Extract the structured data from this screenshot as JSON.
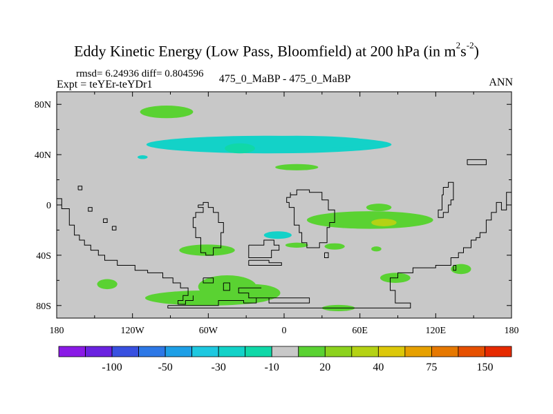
{
  "chart_data": {
    "type": "heatmap",
    "title": {
      "main": "Eddy Kinetic Energy (Low Pass, Bloomfield) at 200 hPa (in m",
      "exp1": "2",
      "mid": "s",
      "exp2": "-2",
      "close": ")"
    },
    "stats_line": "rmsd= 6.24936  diff= 0.804596",
    "expt_line": "Expt = teYEr-teYDr1",
    "center_label": "475_0_MaBP - 475_0_MaBP",
    "right_label": "ANN",
    "xlim": [
      -180,
      180
    ],
    "ylim": [
      -90,
      90
    ],
    "x_ticks": [
      {
        "value": -180,
        "label": "180"
      },
      {
        "value": -120,
        "label": "120W"
      },
      {
        "value": -60,
        "label": "60W"
      },
      {
        "value": 0,
        "label": "0"
      },
      {
        "value": 60,
        "label": "60E"
      },
      {
        "value": 120,
        "label": "120E"
      },
      {
        "value": 180,
        "label": "180"
      }
    ],
    "y_ticks": [
      {
        "value": 80,
        "label": "80N"
      },
      {
        "value": 40,
        "label": "40N"
      },
      {
        "value": 0,
        "label": "0"
      },
      {
        "value": -40,
        "label": "40S"
      },
      {
        "value": -80,
        "label": "80S"
      }
    ],
    "colorbar": {
      "colors": [
        "#8a1ae6",
        "#6a22e0",
        "#3850e0",
        "#2d78e6",
        "#1e9fe6",
        "#1ec8e0",
        "#13d2c8",
        "#10d8a8",
        "#c8c8c8",
        "#5ad232",
        "#8cd21e",
        "#b4d214",
        "#dcc80a",
        "#e6a000",
        "#e67800",
        "#e65000",
        "#e62a00"
      ],
      "labels": [
        {
          "after_box": 1,
          "text": "-100"
        },
        {
          "after_box": 3,
          "text": "-50"
        },
        {
          "after_box": 5,
          "text": "-30"
        },
        {
          "after_box": 7,
          "text": "-10"
        },
        {
          "after_box": 9,
          "text": "20"
        },
        {
          "after_box": 11,
          "text": "40"
        },
        {
          "after_box": 13,
          "text": "75"
        },
        {
          "after_box": 15,
          "text": "150"
        }
      ]
    },
    "field_regions": [
      {
        "color": "#5ad232",
        "lon": -93,
        "lat": 74,
        "rlon": 21,
        "rlat": 5
      },
      {
        "color": "#13d2c8",
        "lon": -12,
        "lat": 48,
        "rlon": 97,
        "rlat": 7
      },
      {
        "color": "#13d2c8",
        "lon": 10,
        "lat": 50,
        "rlon": 60,
        "rlat": 5
      },
      {
        "color": "#10d8a8",
        "lon": -35,
        "lat": 45,
        "rlon": 12,
        "rlat": 4
      },
      {
        "color": "#13d2c8",
        "lon": -112,
        "lat": 38,
        "rlon": 4,
        "rlat": 1.5
      },
      {
        "color": "#5ad232",
        "lon": 10,
        "lat": 30,
        "rlon": 17,
        "rlat": 2.5
      },
      {
        "color": "#5ad232",
        "lon": 68,
        "lat": -12,
        "rlon": 50,
        "rlat": 7
      },
      {
        "color": "#5ad232",
        "lon": 75,
        "lat": -2,
        "rlon": 10,
        "rlat": 3
      },
      {
        "color": "#b4d214",
        "lon": 79,
        "lat": -14,
        "rlon": 10,
        "rlat": 3
      },
      {
        "color": "#13d2c8",
        "lon": -5,
        "lat": -24,
        "rlon": 11,
        "rlat": 3
      },
      {
        "color": "#5ad232",
        "lon": 10,
        "lat": -32,
        "rlon": 9,
        "rlat": 2
      },
      {
        "color": "#5ad232",
        "lon": 40,
        "lat": -33,
        "rlon": 8,
        "rlat": 2.5
      },
      {
        "color": "#5ad232",
        "lon": 73,
        "lat": -35,
        "rlon": 4,
        "rlat": 2
      },
      {
        "color": "#5ad232",
        "lon": -61,
        "lat": -36,
        "rlon": 22,
        "rlat": 4.5
      },
      {
        "color": "#5ad232",
        "lon": 88,
        "lat": -58,
        "rlon": 12,
        "rlat": 4
      },
      {
        "color": "#5ad232",
        "lon": 140,
        "lat": -51,
        "rlon": 8,
        "rlat": 4
      },
      {
        "color": "#5ad232",
        "lon": -140,
        "lat": -63,
        "rlon": 8,
        "rlat": 4
      },
      {
        "color": "#5ad232",
        "lon": -45,
        "lat": -65,
        "rlon": 23,
        "rlat": 9
      },
      {
        "color": "#5ad232",
        "lon": -60,
        "lat": -74,
        "rlon": 50,
        "rlat": 6
      },
      {
        "color": "#5ad232",
        "lon": -25,
        "lat": -70,
        "rlon": 22,
        "rlat": 7
      },
      {
        "color": "#5ad232",
        "lon": 43,
        "lat": -82,
        "rlon": 13,
        "rlat": 2.5
      }
    ],
    "coastlines": [
      [
        [
          -180,
          5
        ],
        [
          -176,
          5
        ],
        [
          -176,
          -3
        ],
        [
          -170,
          -3
        ],
        [
          -170,
          -16
        ],
        [
          -166,
          -16
        ],
        [
          -166,
          -24
        ],
        [
          -162,
          -24
        ],
        [
          -162,
          -28
        ],
        [
          -158,
          -28
        ],
        [
          -158,
          -32
        ],
        [
          -153,
          -32
        ],
        [
          -153,
          -36
        ],
        [
          -147,
          -36
        ],
        [
          -147,
          -40
        ],
        [
          -142,
          -40
        ],
        [
          -142,
          -44
        ],
        [
          -132,
          -44
        ],
        [
          -132,
          -48
        ],
        [
          -118,
          -48
        ],
        [
          -118,
          -52
        ],
        [
          -108,
          -52
        ],
        [
          -108,
          -54
        ],
        [
          -96,
          -54
        ],
        [
          -96,
          -58
        ],
        [
          -88,
          -58
        ],
        [
          -88,
          -62
        ],
        [
          -82,
          -62
        ],
        [
          -82,
          -66
        ],
        [
          -76,
          -66
        ],
        [
          -76,
          -72
        ],
        [
          -80,
          -72
        ],
        [
          -80,
          -76
        ],
        [
          -84,
          -76
        ],
        [
          -84,
          -79
        ],
        [
          -78,
          -79
        ],
        [
          -78,
          -76
        ],
        [
          -72,
          -76
        ],
        [
          -72,
          -72
        ]
      ],
      [
        [
          -92,
          -80
        ],
        [
          -52,
          -80
        ],
        [
          -52,
          -76
        ],
        [
          -32,
          -76
        ],
        [
          -32,
          -78
        ],
        [
          -22,
          -78
        ],
        [
          -22,
          -74
        ],
        [
          -12,
          -74
        ],
        [
          -12,
          -78
        ],
        [
          20,
          -78
        ],
        [
          20,
          -74
        ],
        [
          -28,
          -74
        ],
        [
          -28,
          -70
        ],
        [
          -36,
          -70
        ],
        [
          -36,
          -66
        ],
        [
          -18,
          -66
        ]
      ],
      [
        [
          -92,
          -80
        ],
        [
          -92,
          -82
        ],
        [
          100,
          -82
        ],
        [
          100,
          -78
        ],
        [
          88,
          -78
        ],
        [
          88,
          -68
        ],
        [
          84,
          -68
        ],
        [
          84,
          -58
        ],
        [
          90,
          -58
        ],
        [
          90,
          -54
        ],
        [
          102,
          -54
        ],
        [
          102,
          -50
        ],
        [
          120,
          -50
        ],
        [
          120,
          -48
        ],
        [
          132,
          -48
        ],
        [
          132,
          -42
        ],
        [
          138,
          -42
        ],
        [
          138,
          -38
        ],
        [
          142,
          -38
        ],
        [
          142,
          -34
        ],
        [
          148,
          -34
        ],
        [
          148,
          -28
        ],
        [
          152,
          -28
        ],
        [
          152,
          -26
        ],
        [
          155,
          -26
        ],
        [
          155,
          -22
        ],
        [
          160,
          -22
        ],
        [
          160,
          -12
        ],
        [
          164,
          -12
        ],
        [
          164,
          -6
        ],
        [
          168,
          -6
        ],
        [
          168,
          2
        ],
        [
          172,
          2
        ],
        [
          172,
          -4
        ],
        [
          176,
          -4
        ],
        [
          176,
          10
        ],
        [
          180,
          10
        ]
      ],
      [
        [
          -68,
          0
        ],
        [
          -68,
          -2
        ],
        [
          -64,
          -2
        ],
        [
          -64,
          -6
        ],
        [
          -70,
          -6
        ],
        [
          -70,
          -10
        ],
        [
          -72,
          -10
        ],
        [
          -72,
          -18
        ],
        [
          -70,
          -18
        ],
        [
          -70,
          -26
        ],
        [
          -66,
          -26
        ],
        [
          -66,
          -38
        ],
        [
          -62,
          -38
        ],
        [
          -62,
          -40
        ],
        [
          -56,
          -40
        ],
        [
          -56,
          -34
        ],
        [
          -50,
          -34
        ],
        [
          -50,
          -22
        ],
        [
          -48,
          -22
        ],
        [
          -48,
          -14
        ],
        [
          -52,
          -14
        ],
        [
          -52,
          -6
        ],
        [
          -56,
          -6
        ],
        [
          -56,
          -2
        ],
        [
          -60,
          -2
        ],
        [
          -60,
          2
        ],
        [
          -64,
          2
        ],
        [
          -64,
          0
        ],
        [
          -68,
          0
        ]
      ],
      [
        [
          5,
          10
        ],
        [
          5,
          8
        ],
        [
          10,
          8
        ],
        [
          10,
          12
        ],
        [
          20,
          12
        ],
        [
          20,
          10
        ],
        [
          30,
          10
        ],
        [
          30,
          4
        ],
        [
          35,
          4
        ],
        [
          35,
          -4
        ],
        [
          40,
          -4
        ],
        [
          40,
          -14
        ],
        [
          36,
          -14
        ],
        [
          36,
          -18
        ],
        [
          34,
          -18
        ],
        [
          34,
          -30
        ],
        [
          28,
          -30
        ],
        [
          28,
          -34
        ],
        [
          18,
          -34
        ],
        [
          18,
          -30
        ],
        [
          14,
          -30
        ],
        [
          14,
          -22
        ],
        [
          12,
          -22
        ],
        [
          12,
          -16
        ],
        [
          8,
          -16
        ],
        [
          8,
          -2
        ],
        [
          4,
          -2
        ],
        [
          4,
          2
        ],
        [
          2,
          2
        ],
        [
          2,
          6
        ],
        [
          5,
          6
        ],
        [
          5,
          10
        ]
      ],
      [
        [
          -28,
          -32
        ],
        [
          -28,
          -42
        ],
        [
          -10,
          -42
        ],
        [
          -10,
          -36
        ],
        [
          -4,
          -36
        ],
        [
          -4,
          -32
        ],
        [
          -8,
          -32
        ],
        [
          -8,
          -28
        ],
        [
          -16,
          -28
        ],
        [
          -16,
          -32
        ],
        [
          -28,
          -32
        ]
      ],
      [
        [
          -28,
          -44
        ],
        [
          -28,
          -48
        ],
        [
          -2,
          -48
        ],
        [
          -2,
          -46
        ],
        [
          -12,
          -46
        ],
        [
          -12,
          -44
        ],
        [
          -28,
          -44
        ]
      ],
      [
        [
          145,
          32
        ],
        [
          145,
          36
        ],
        [
          160,
          36
        ],
        [
          160,
          32
        ],
        [
          145,
          32
        ]
      ],
      [
        [
          125,
          8
        ],
        [
          125,
          -4
        ],
        [
          122,
          -4
        ],
        [
          122,
          -10
        ],
        [
          126,
          -10
        ],
        [
          126,
          -6
        ],
        [
          130,
          -6
        ],
        [
          130,
          0
        ],
        [
          132,
          0
        ],
        [
          132,
          4
        ],
        [
          134,
          4
        ],
        [
          134,
          18
        ],
        [
          130,
          18
        ],
        [
          130,
          14
        ],
        [
          126,
          14
        ],
        [
          126,
          8
        ],
        [
          125,
          8
        ]
      ],
      [
        [
          -163,
          12
        ],
        [
          -163,
          15
        ],
        [
          -160,
          15
        ],
        [
          -160,
          12
        ],
        [
          -163,
          12
        ]
      ],
      [
        [
          -155,
          -2
        ],
        [
          -155,
          -5
        ],
        [
          -152,
          -5
        ],
        [
          -152,
          -2
        ],
        [
          -155,
          -2
        ]
      ],
      [
        [
          -143,
          -11
        ],
        [
          -143,
          -14
        ],
        [
          -140,
          -14
        ],
        [
          -140,
          -11
        ],
        [
          -143,
          -11
        ]
      ],
      [
        [
          -136,
          -17
        ],
        [
          -136,
          -20
        ],
        [
          -133,
          -20
        ],
        [
          -133,
          -17
        ],
        [
          -136,
          -17
        ]
      ],
      [
        [
          32,
          -38
        ],
        [
          32,
          -42
        ],
        [
          35,
          -42
        ],
        [
          35,
          -38
        ],
        [
          32,
          -38
        ]
      ],
      [
        [
          -48,
          -62
        ],
        [
          -48,
          -68
        ],
        [
          -43,
          -68
        ],
        [
          -43,
          -62
        ],
        [
          -48,
          -62
        ]
      ],
      [
        [
          -64,
          -58
        ],
        [
          -64,
          -62
        ],
        [
          -56,
          -62
        ],
        [
          -56,
          -58
        ],
        [
          -64,
          -58
        ]
      ],
      [
        [
          134,
          -48
        ],
        [
          134,
          -52
        ],
        [
          136,
          -52
        ],
        [
          136,
          -48
        ],
        [
          134,
          -48
        ]
      ]
    ]
  }
}
